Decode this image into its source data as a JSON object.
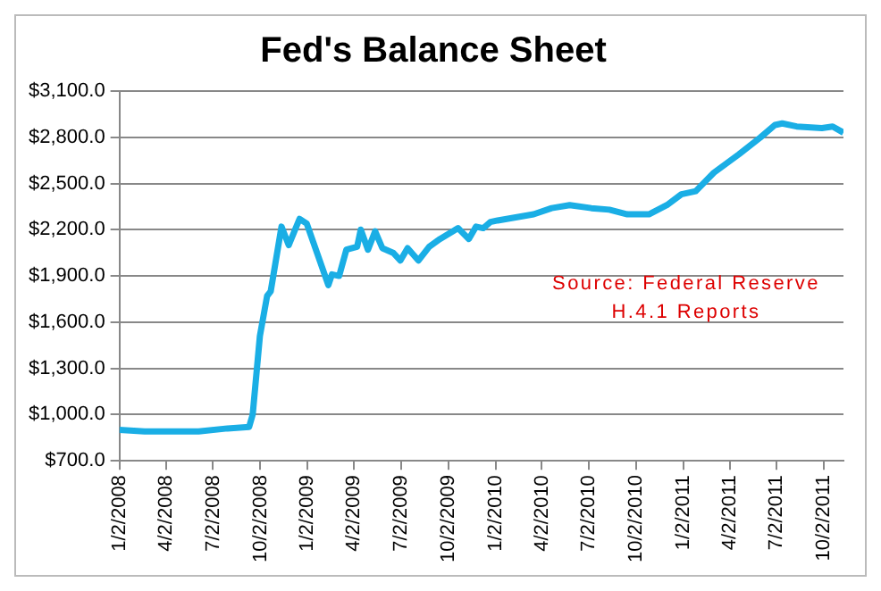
{
  "chart_data": {
    "type": "line",
    "title": "Fed's Balance Sheet",
    "x": [
      "2008-01-02",
      "2008-02-20",
      "2008-04-16",
      "2008-06-04",
      "2008-07-30",
      "2008-09-10",
      "2008-09-17",
      "2008-10-01",
      "2008-10-15",
      "2008-10-22",
      "2008-11-12",
      "2008-11-26",
      "2008-12-17",
      "2008-12-31",
      "2009-01-21",
      "2009-02-11",
      "2009-02-18",
      "2009-03-04",
      "2009-03-18",
      "2009-04-08",
      "2009-04-15",
      "2009-04-29",
      "2009-05-13",
      "2009-05-27",
      "2009-06-17",
      "2009-07-01",
      "2009-07-15",
      "2009-08-05",
      "2009-08-26",
      "2009-09-16",
      "2009-10-21",
      "2009-11-11",
      "2009-11-25",
      "2009-12-09",
      "2009-12-23",
      "2010-01-06",
      "2010-03-17",
      "2010-04-21",
      "2010-05-26",
      "2010-07-07",
      "2010-08-11",
      "2010-09-15",
      "2010-10-27",
      "2010-12-01",
      "2010-12-29",
      "2011-01-26",
      "2011-03-02",
      "2011-04-20",
      "2011-06-01",
      "2011-06-29",
      "2011-07-13",
      "2011-08-10",
      "2011-09-28",
      "2011-10-19",
      "2011-11-09"
    ],
    "series": [
      {
        "color": "#1aaee5",
        "values": [
          900,
          890,
          890,
          890,
          910,
          920,
          1000,
          1510,
          1770,
          1800,
          2220,
          2100,
          2270,
          2240,
          2040,
          1840,
          1910,
          1900,
          2070,
          2090,
          2200,
          2070,
          2190,
          2080,
          2050,
          2000,
          2080,
          2000,
          2090,
          2140,
          2210,
          2140,
          2220,
          2210,
          2250,
          2260,
          2300,
          2340,
          2360,
          2340,
          2330,
          2300,
          2300,
          2360,
          2430,
          2450,
          2570,
          2690,
          2800,
          2880,
          2890,
          2870,
          2860,
          2870,
          2830
        ]
      }
    ],
    "xlim": [
      "2008-01-02",
      "2011-11-09"
    ],
    "xticks": [
      {
        "value": "2008-01-02",
        "label": "1/2/2008"
      },
      {
        "value": "2008-04-02",
        "label": "4/2/2008"
      },
      {
        "value": "2008-07-02",
        "label": "7/2/2008"
      },
      {
        "value": "2008-10-02",
        "label": "10/2/2008"
      },
      {
        "value": "2009-01-02",
        "label": "1/2/2009"
      },
      {
        "value": "2009-04-02",
        "label": "4/2/2009"
      },
      {
        "value": "2009-07-02",
        "label": "7/2/2009"
      },
      {
        "value": "2009-10-02",
        "label": "10/2/2009"
      },
      {
        "value": "2010-01-02",
        "label": "1/2/2010"
      },
      {
        "value": "2010-04-02",
        "label": "4/2/2010"
      },
      {
        "value": "2010-07-02",
        "label": "7/2/2010"
      },
      {
        "value": "2010-10-02",
        "label": "10/2/2010"
      },
      {
        "value": "2011-01-02",
        "label": "1/2/2011"
      },
      {
        "value": "2011-04-02",
        "label": "4/2/2011"
      },
      {
        "value": "2011-07-02",
        "label": "7/2/2011"
      },
      {
        "value": "2011-10-02",
        "label": "10/2/2011"
      }
    ],
    "ylim": [
      700,
      3100
    ],
    "yticks": [
      {
        "value": 700,
        "label": "$700.0"
      },
      {
        "value": 1000,
        "label": "$1,000.0"
      },
      {
        "value": 1300,
        "label": "$1,300.0"
      },
      {
        "value": 1600,
        "label": "$1,600.0"
      },
      {
        "value": 1900,
        "label": "$1,900.0"
      },
      {
        "value": 2200,
        "label": "$2,200.0"
      },
      {
        "value": 2500,
        "label": "$2,500.0"
      },
      {
        "value": 2800,
        "label": "$2,800.0"
      },
      {
        "value": 3100,
        "label": "$3,100.0"
      }
    ],
    "grid": "y",
    "legend": false,
    "marker": "none",
    "line_style": "solid",
    "annotations": [
      "Source: Federal Reserve H.4.1 Reports"
    ]
  }
}
